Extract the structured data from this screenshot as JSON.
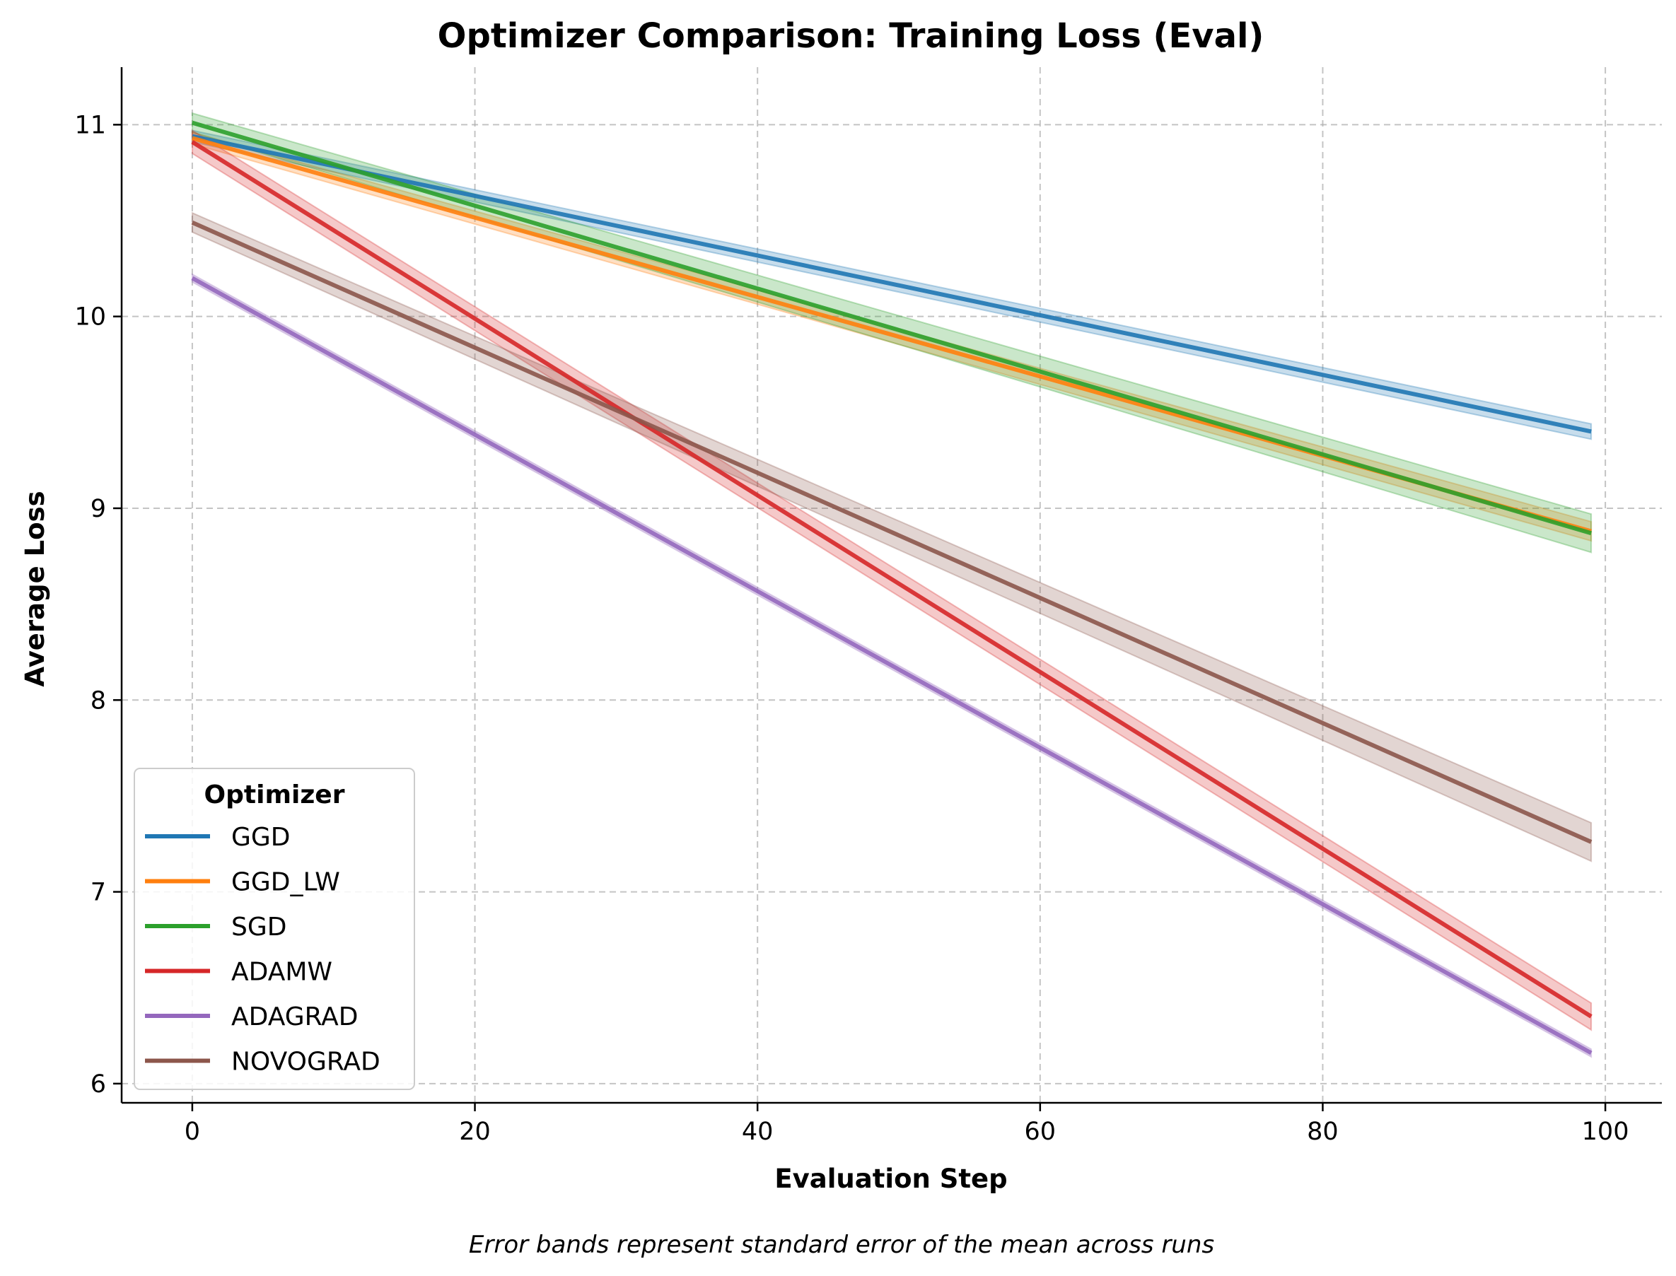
{
  "chart_data": {
    "type": "line",
    "title": "Optimizer Comparison: Training Loss (Eval)",
    "xlabel": "Evaluation Step",
    "ylabel": "Average Loss",
    "caption": "Error bands represent standard error of the mean across runs",
    "xlim": [
      -5,
      104
    ],
    "ylim": [
      5.9,
      11.3
    ],
    "xticks": [
      0,
      20,
      40,
      60,
      80,
      100
    ],
    "yticks": [
      6,
      7,
      8,
      9,
      10,
      11
    ],
    "grid": true,
    "legend": {
      "title": "Optimizer",
      "placement": "lower-left"
    },
    "series": [
      {
        "name": "GGD",
        "color": "#1f77b4",
        "x": [
          0,
          99
        ],
        "y": [
          10.94,
          9.4
        ],
        "band": [
          0.03,
          0.04
        ]
      },
      {
        "name": "GGD_LW",
        "color": "#ff7f0e",
        "x": [
          0,
          99
        ],
        "y": [
          10.93,
          8.88
        ],
        "band": [
          0.03,
          0.05
        ]
      },
      {
        "name": "SGD",
        "color": "#2ca02c",
        "x": [
          0,
          99
        ],
        "y": [
          11.01,
          8.87
        ],
        "band": [
          0.05,
          0.1
        ]
      },
      {
        "name": "ADAMW",
        "color": "#d62728",
        "x": [
          0,
          99
        ],
        "y": [
          10.91,
          6.35
        ],
        "band": [
          0.06,
          0.07
        ]
      },
      {
        "name": "ADAGRAD",
        "color": "#9467bd",
        "x": [
          0,
          99
        ],
        "y": [
          10.2,
          6.16
        ],
        "band": [
          0.02,
          0.02
        ]
      },
      {
        "name": "NOVOGRAD",
        "color": "#8c564b",
        "x": [
          0,
          99
        ],
        "y": [
          10.49,
          7.26
        ],
        "band": [
          0.05,
          0.1
        ]
      }
    ]
  }
}
